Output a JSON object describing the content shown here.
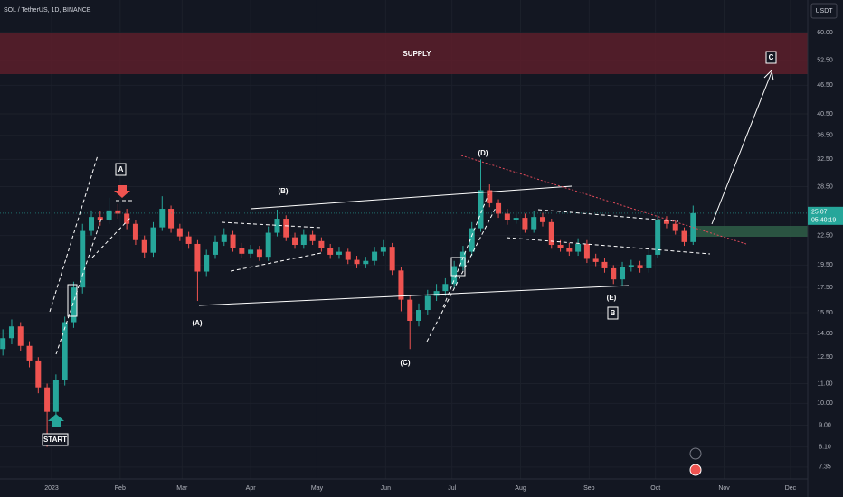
{
  "header": {
    "title": "SOL / TetherUS, 1D, BINANCE",
    "currency": "USDT"
  },
  "chart_data": {
    "type": "candlestick",
    "log_scale": true,
    "grid": true,
    "up_color": "#26a69a",
    "down_color": "#ef5350",
    "x": [
      -22,
      -18,
      -14,
      -10,
      -6,
      -2,
      2,
      6,
      10,
      14,
      18,
      22,
      26,
      30,
      34,
      38,
      42,
      46,
      50,
      54,
      58,
      62,
      66,
      70,
      74,
      78,
      82,
      86,
      90,
      94,
      98,
      102,
      106,
      110,
      114,
      118,
      122,
      126,
      130,
      134,
      138,
      142,
      146,
      150,
      154,
      158,
      162,
      166,
      170,
      174,
      178,
      182,
      186,
      190,
      194,
      198,
      202,
      206,
      210,
      214,
      218,
      222,
      226,
      230,
      234,
      238,
      242,
      246,
      250,
      254,
      258,
      262,
      266,
      270,
      274,
      278,
      282,
      286,
      290
    ],
    "open": [
      13.0,
      13.7,
      14.5,
      13.2,
      12.3,
      10.8,
      9.6,
      11.2,
      14.8,
      17.5,
      23.0,
      24.6,
      24.2,
      25.4,
      25.0,
      23.8,
      22.0,
      20.7,
      23.4,
      25.6,
      23.3,
      22.4,
      21.6,
      18.9,
      20.5,
      21.8,
      22.6,
      21.2,
      20.6,
      21.0,
      20.3,
      22.8,
      24.4,
      22.3,
      21.5,
      22.6,
      21.9,
      21.2,
      20.5,
      20.8,
      20.0,
      19.6,
      19.9,
      20.8,
      21.3,
      19.0,
      16.5,
      14.9,
      15.7,
      16.8,
      17.2,
      17.8,
      19.4,
      20.8,
      23.3,
      28.0,
      26.3,
      25.0,
      24.2,
      24.5,
      23.2,
      24.6,
      24.0,
      21.5,
      21.2,
      20.8,
      21.6,
      20.1,
      19.8,
      19.2,
      18.2,
      19.3,
      19.5,
      19.2,
      20.5,
      24.2,
      23.8,
      23.0,
      21.8
    ],
    "high": [
      14.3,
      15.0,
      14.8,
      13.5,
      12.5,
      11.0,
      11.5,
      15.2,
      18.0,
      23.8,
      25.4,
      25.3,
      27.0,
      26.2,
      25.6,
      24.2,
      22.5,
      24.0,
      27.2,
      26.0,
      23.8,
      22.9,
      22.0,
      21.0,
      22.5,
      23.3,
      23.0,
      21.7,
      21.5,
      21.4,
      23.5,
      25.5,
      24.8,
      22.8,
      23.2,
      23.0,
      22.3,
      21.6,
      21.3,
      21.1,
      20.4,
      20.3,
      21.3,
      22.0,
      21.7,
      19.3,
      16.8,
      16.2,
      17.3,
      17.8,
      18.3,
      19.9,
      21.4,
      24.0,
      32.5,
      28.8,
      26.8,
      25.6,
      25.2,
      25.0,
      25.3,
      25.1,
      24.4,
      22.0,
      21.7,
      22.2,
      22.0,
      20.6,
      20.2,
      19.5,
      19.8,
      20.0,
      19.9,
      21.0,
      24.8,
      24.7,
      24.2,
      23.4,
      26.0
    ],
    "low": [
      12.6,
      13.3,
      12.9,
      11.9,
      10.5,
      8.1,
      9.3,
      10.9,
      14.4,
      17.0,
      22.5,
      23.6,
      23.8,
      24.4,
      23.2,
      21.5,
      20.2,
      20.3,
      23.0,
      22.8,
      21.9,
      21.1,
      16.4,
      18.5,
      20.1,
      21.4,
      20.8,
      20.2,
      20.2,
      19.9,
      19.9,
      22.4,
      21.9,
      21.1,
      21.1,
      21.5,
      20.8,
      20.1,
      20.1,
      19.6,
      19.2,
      19.2,
      19.5,
      20.4,
      18.6,
      15.6,
      13.0,
      14.5,
      15.3,
      16.4,
      16.8,
      17.4,
      19.0,
      20.4,
      22.9,
      25.8,
      24.5,
      23.7,
      23.8,
      22.8,
      22.8,
      23.5,
      21.1,
      20.8,
      20.4,
      20.4,
      19.7,
      19.4,
      18.8,
      17.8,
      17.6,
      18.9,
      18.8,
      18.8,
      20.2,
      23.3,
      22.6,
      21.4,
      21.5
    ],
    "close": [
      13.7,
      14.5,
      13.2,
      12.3,
      10.8,
      9.6,
      11.2,
      14.8,
      17.5,
      23.0,
      24.6,
      24.2,
      25.4,
      25.0,
      23.8,
      22.0,
      20.7,
      23.4,
      25.6,
      23.3,
      22.4,
      21.6,
      18.9,
      20.5,
      21.8,
      22.6,
      21.2,
      20.6,
      21.0,
      20.3,
      22.8,
      24.4,
      22.3,
      21.5,
      22.6,
      21.9,
      21.2,
      20.5,
      20.8,
      20.0,
      19.6,
      19.9,
      20.8,
      21.3,
      19.0,
      16.5,
      14.9,
      15.7,
      16.8,
      17.2,
      17.8,
      19.4,
      20.8,
      23.3,
      28.0,
      26.3,
      25.0,
      24.2,
      24.5,
      23.2,
      24.6,
      24.0,
      21.5,
      21.2,
      20.8,
      21.6,
      20.1,
      19.8,
      19.2,
      18.2,
      19.3,
      19.5,
      19.2,
      20.5,
      24.2,
      23.8,
      23.0,
      21.8,
      25.07
    ],
    "last_price": 25.07,
    "countdown": "05:40:19",
    "xlim": [
      -23.3,
      341.8
    ],
    "xticks": [
      {
        "value": 0,
        "label": "2023"
      },
      {
        "value": 31,
        "label": "Feb"
      },
      {
        "value": 59,
        "label": "Mar"
      },
      {
        "value": 90,
        "label": "Apr"
      },
      {
        "value": 120,
        "label": "May"
      },
      {
        "value": 151,
        "label": "Jun"
      },
      {
        "value": 181,
        "label": "Jul"
      },
      {
        "value": 212,
        "label": "Aug"
      },
      {
        "value": 243,
        "label": "Sep"
      },
      {
        "value": 273,
        "label": "Oct"
      },
      {
        "value": 304,
        "label": "Nov"
      },
      {
        "value": 334,
        "label": "Dec"
      }
    ],
    "ylim": [
      6.94,
      70.2
    ],
    "yticks": [
      {
        "value": 60,
        "label": "60.00"
      },
      {
        "value": 52.5,
        "label": "52.50"
      },
      {
        "value": 46.5,
        "label": "46.50"
      },
      {
        "value": 40.5,
        "label": "40.50"
      },
      {
        "value": 36.5,
        "label": "36.50"
      },
      {
        "value": 32.5,
        "label": "32.50"
      },
      {
        "value": 28.5,
        "label": "28.50"
      },
      {
        "value": 22.5,
        "label": "22.50"
      },
      {
        "value": 19.5,
        "label": "19.50"
      },
      {
        "value": 17.5,
        "label": "17.50"
      },
      {
        "value": 15.5,
        "label": "15.50"
      },
      {
        "value": 14,
        "label": "14.00"
      },
      {
        "value": 12.5,
        "label": "12.50"
      },
      {
        "value": 11,
        "label": "11.00"
      },
      {
        "value": 10,
        "label": "10.00"
      },
      {
        "value": 9,
        "label": "9.00"
      },
      {
        "value": 8.1,
        "label": "8.10"
      },
      {
        "value": 7.35,
        "label": "7.35"
      }
    ]
  },
  "annotations": {
    "supply": "SUPPLY",
    "wave_a": "A",
    "wave_b": "B",
    "wave_c": "C",
    "start": "START",
    "sub_a": "(A)",
    "sub_b": "(B)",
    "sub_c": "(C)",
    "sub_d": "(D)",
    "sub_e": "(E)"
  }
}
